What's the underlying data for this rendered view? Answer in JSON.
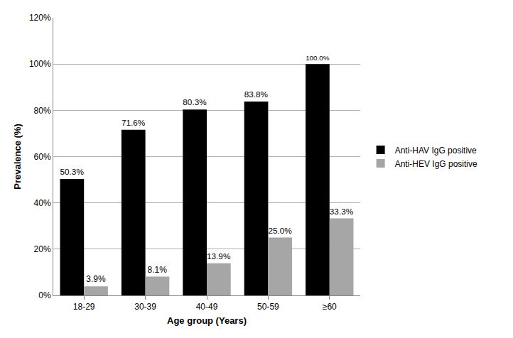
{
  "chart_data": {
    "type": "bar",
    "x_label": "Age group (Years)",
    "y_label": "Prevalence (%)",
    "categories": [
      "18-29",
      "30-39",
      "40-49",
      "50-59",
      "≥60"
    ],
    "series": [
      {
        "name": "Anti-HAV IgG positive",
        "color": "#000000",
        "values": [
          50.3,
          71.6,
          80.3,
          83.8,
          100.0
        ],
        "value_labels": [
          "50.3%",
          "71.6%",
          "80.3%",
          "83.8%",
          "100.0%"
        ]
      },
      {
        "name": "Anti-HEV IgG positive",
        "color": "#a6a6a6",
        "values": [
          3.9,
          8.1,
          13.9,
          25.0,
          33.3
        ],
        "value_labels": [
          "3.9%",
          "8.1%",
          "13.9%",
          "25.0%",
          "33.3%"
        ]
      }
    ],
    "ylim": [
      0,
      120
    ],
    "yticks": [
      {
        "value": 0,
        "label": "0%"
      },
      {
        "value": 20,
        "label": "20%"
      },
      {
        "value": 40,
        "label": "40%"
      },
      {
        "value": 60,
        "label": "60%"
      },
      {
        "value": 80,
        "label": "80%"
      },
      {
        "value": 100,
        "label": "100%"
      },
      {
        "value": 120,
        "label": "120%"
      }
    ],
    "grid": true,
    "legend": "right",
    "data_labels": true
  }
}
